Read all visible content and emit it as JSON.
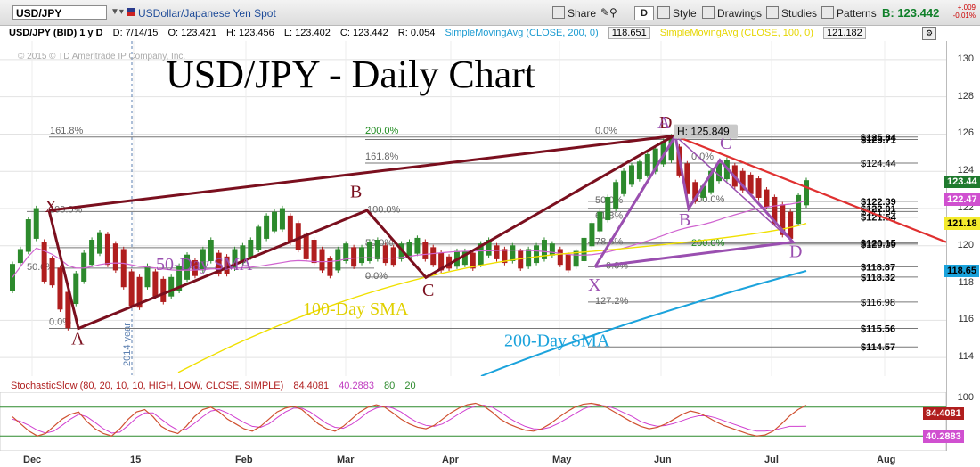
{
  "toolbar": {
    "symbol": "USD/JPY",
    "description": "USDollar/Japanese Yen Spot",
    "share": "Share",
    "style": "Style",
    "drawings": "Drawings",
    "studies": "Studies",
    "patterns": "Patterns",
    "d_button": "D",
    "bid": "B: 123.442",
    "change_abs": "+.009",
    "change_pct": "-0.01%"
  },
  "infobar": {
    "symbol": "USD/JPY (BID) 1 y D",
    "date": "D: 7/14/15",
    "open": "O: 123.421",
    "high": "H: 123.456",
    "low": "L: 123.402",
    "close": "C: 123.442",
    "range": "R: 0.054",
    "sma200_label": "SimpleMovingAvg (CLOSE, 200, 0)",
    "sma200_val": "118.651",
    "sma100_label": "SimpleMovingAvg (CLOSE, 100, 0)",
    "sma100_val": "121.182"
  },
  "copyright": "© 2015 © TD Ameritrade IP Company, Inc.",
  "stoch": {
    "label": "StochasticSlow (80, 20, 10, 10, HIGH, LOW, CLOSE, SIMPLE)",
    "k_val": "84.4081",
    "d_val": "40.2883",
    "ob": "80",
    "os": "20"
  },
  "chart_data": {
    "type": "candlestick",
    "title": "USD/JPY - Daily Chart",
    "ylim": [
      113,
      131
    ],
    "y_ticks": [
      114,
      116,
      118,
      120,
      122,
      124,
      126,
      128,
      130
    ],
    "x_ticks": [
      "Dec",
      "15",
      "Feb",
      "Mar",
      "Apr",
      "May",
      "Jun",
      "Jul",
      "Aug"
    ],
    "year_marker": "2014 year",
    "close_series": [
      [
        119.0,
        117.6
      ],
      [
        119.8,
        119.1
      ],
      [
        121.4,
        119.7
      ],
      [
        122.0,
        120.4
      ],
      [
        120.2,
        118.1
      ],
      [
        119.3,
        117.9
      ],
      [
        118.8,
        116.6
      ],
      [
        117.5,
        115.6
      ],
      [
        118.5,
        116.9
      ],
      [
        119.6,
        118.1
      ],
      [
        120.3,
        119.0
      ],
      [
        120.7,
        119.6
      ],
      [
        120.6,
        119.0
      ],
      [
        120.1,
        118.7
      ],
      [
        119.8,
        117.8
      ],
      [
        118.6,
        116.8
      ],
      [
        118.3,
        116.7
      ],
      [
        118.9,
        117.8
      ],
      [
        118.6,
        117.3
      ],
      [
        118.2,
        117.0
      ],
      [
        118.3,
        117.3
      ],
      [
        118.9,
        117.6
      ],
      [
        119.5,
        118.2
      ],
      [
        119.2,
        118.4
      ],
      [
        119.8,
        118.7
      ],
      [
        120.3,
        119.2
      ],
      [
        119.6,
        118.5
      ],
      [
        119.4,
        118.5
      ],
      [
        119.8,
        118.8
      ],
      [
        120.0,
        119.1
      ],
      [
        120.3,
        119.4
      ],
      [
        121.0,
        119.8
      ],
      [
        121.6,
        120.4
      ],
      [
        121.8,
        120.8
      ],
      [
        122.0,
        120.9
      ],
      [
        121.6,
        120.2
      ],
      [
        121.2,
        119.8
      ],
      [
        120.6,
        119.3
      ],
      [
        120.3,
        119.1
      ],
      [
        119.8,
        118.7
      ],
      [
        119.3,
        118.4
      ],
      [
        119.8,
        118.7
      ],
      [
        120.1,
        119.2
      ],
      [
        119.9,
        118.9
      ],
      [
        119.9,
        119.1
      ],
      [
        120.2,
        119.2
      ],
      [
        120.3,
        119.3
      ],
      [
        120.0,
        119.1
      ],
      [
        119.9,
        119.0
      ],
      [
        120.1,
        119.3
      ],
      [
        120.2,
        119.4
      ],
      [
        120.4,
        119.6
      ],
      [
        120.2,
        119.3
      ],
      [
        119.9,
        119.0
      ],
      [
        119.6,
        118.7
      ],
      [
        119.4,
        118.8
      ],
      [
        119.7,
        118.9
      ],
      [
        119.7,
        119.0
      ],
      [
        119.6,
        118.8
      ],
      [
        120.1,
        119.0
      ],
      [
        120.3,
        119.5
      ],
      [
        120.0,
        119.3
      ],
      [
        119.8,
        119.1
      ],
      [
        120.0,
        119.2
      ],
      [
        119.7,
        118.8
      ],
      [
        119.8,
        118.9
      ],
      [
        120.0,
        119.1
      ],
      [
        120.3,
        119.3
      ],
      [
        120.1,
        119.5
      ],
      [
        119.8,
        119.0
      ],
      [
        119.5,
        118.7
      ],
      [
        119.7,
        118.9
      ],
      [
        120.4,
        119.2
      ],
      [
        121.2,
        120.0
      ],
      [
        121.8,
        120.8
      ],
      [
        122.6,
        121.4
      ],
      [
        123.4,
        122.0
      ],
      [
        124.0,
        122.8
      ],
      [
        124.3,
        123.3
      ],
      [
        124.5,
        123.6
      ],
      [
        124.9,
        123.8
      ],
      [
        125.2,
        124.0
      ],
      [
        125.6,
        124.4
      ],
      [
        125.85,
        124.6
      ],
      [
        125.3,
        123.8
      ],
      [
        124.4,
        122.8
      ],
      [
        123.4,
        122.4
      ],
      [
        123.2,
        122.6
      ],
      [
        124.0,
        122.9
      ],
      [
        124.4,
        123.5
      ],
      [
        124.6,
        123.6
      ],
      [
        124.3,
        123.2
      ],
      [
        124.0,
        123.0
      ],
      [
        123.8,
        122.8
      ],
      [
        123.6,
        122.6
      ],
      [
        123.0,
        122.1
      ],
      [
        122.6,
        121.2
      ],
      [
        122.2,
        120.6
      ],
      [
        121.8,
        120.4
      ],
      [
        122.7,
        121.2
      ],
      [
        123.5,
        122.2
      ]
    ],
    "sma200_value": 118.651,
    "sma100_value": 121.182,
    "price_labels": [
      {
        "value": 125.84,
        "text": "$125.84"
      },
      {
        "value": 125.71,
        "text": "$125.71"
      },
      {
        "value": 124.44,
        "text": "$124.44"
      },
      {
        "value": 122.39,
        "text": "$122.39"
      },
      {
        "value": 122.01,
        "text": "$122.01"
      },
      {
        "value": 121.84,
        "text": "$121.84"
      },
      {
        "value": 121.54,
        "text": "$121.54"
      },
      {
        "value": 120.15,
        "text": "$120.15"
      },
      {
        "value": 120.09,
        "text": "$120.09"
      },
      {
        "value": 118.87,
        "text": "$118.87"
      },
      {
        "value": 118.32,
        "text": "$118.32"
      },
      {
        "value": 116.98,
        "text": "$116.98"
      },
      {
        "value": 115.56,
        "text": "$115.56"
      },
      {
        "value": 114.57,
        "text": "$114.57"
      }
    ],
    "current_price": {
      "value": 123.44,
      "text": "123.44"
    },
    "sma100_box": {
      "value": 121.18,
      "text": "121.18"
    },
    "sma200_box": {
      "value": 118.65,
      "text": "118.65"
    },
    "magenta_box": {
      "value": 122.47,
      "text": "122.47"
    },
    "high_label": "H: 125.849",
    "fib_labels": [
      "161.8%",
      "200.0%",
      "161.8%",
      "0.0%",
      "100.0%",
      "50.0%",
      "0.0%",
      "100.0%",
      "50.0%",
      "61.8%",
      "78.6%",
      "0.0%",
      "200.0%",
      "0.0%",
      "127.2%",
      "100.0%",
      "50.0%",
      "0.0%"
    ],
    "pattern_points": {
      "first": [
        {
          "label": "X",
          "value": 121.9
        },
        {
          "label": "A",
          "value": 115.56
        },
        {
          "label": "B",
          "value": 121.9
        },
        {
          "label": "C",
          "value": 118.32
        },
        {
          "label": "D",
          "value": 125.84
        }
      ],
      "second": [
        {
          "label": "X",
          "value": 118.87
        },
        {
          "label": "A",
          "value": 125.84
        },
        {
          "label": "B",
          "value": 122.0
        },
        {
          "label": "C",
          "value": 124.5
        },
        {
          "label": "D",
          "value": 120.2
        }
      ]
    },
    "annotations": [
      "50-Day SMA",
      "100-Day SMA",
      "200-Day SMA"
    ],
    "colors": {
      "up": "#2d8a2d",
      "down": "#b01e1e",
      "sma50": "#d064d0",
      "sma100": "#f0e000",
      "sma200": "#1ba3dc",
      "pattern1": "#7a0f1e",
      "pattern2": "#9a4fb0",
      "trendline": "#e03030",
      "stoch_k": "#d05030",
      "stoch_d": "#d040d0"
    }
  },
  "stoch_data": {
    "ylim": [
      0,
      100
    ],
    "k": [
      60,
      45,
      30,
      20,
      25,
      40,
      55,
      65,
      70,
      50,
      35,
      25,
      20,
      35,
      55,
      70,
      75,
      60,
      40,
      30,
      25,
      40,
      60,
      75,
      80,
      70,
      55,
      45,
      35,
      30,
      40,
      55,
      70,
      78,
      82,
      75,
      60,
      45,
      35,
      30,
      40,
      55,
      70,
      80,
      85,
      80,
      68,
      55,
      45,
      38,
      35,
      42,
      55,
      68,
      78,
      85,
      88,
      82,
      70,
      55,
      45,
      38,
      32,
      30,
      35,
      45,
      58,
      70,
      80,
      86,
      88,
      85,
      78,
      68,
      58,
      48,
      40,
      35,
      38,
      45,
      55,
      65,
      72,
      68,
      60,
      50,
      42,
      36,
      30,
      24,
      20,
      22,
      30,
      45,
      62,
      75,
      84
    ],
    "d": [
      55,
      50,
      42,
      32,
      26,
      30,
      42,
      55,
      65,
      60,
      48,
      35,
      26,
      28,
      42,
      58,
      68,
      68,
      55,
      42,
      32,
      34,
      46,
      60,
      72,
      75,
      68,
      58,
      48,
      40,
      38,
      45,
      58,
      70,
      78,
      78,
      70,
      58,
      46,
      38,
      36,
      44,
      56,
      70,
      78,
      82,
      78,
      70,
      58,
      48,
      42,
      40,
      45,
      55,
      66,
      76,
      82,
      84,
      80,
      70,
      58,
      48,
      40,
      35,
      34,
      38,
      46,
      56,
      66,
      76,
      82,
      84,
      82,
      76,
      68,
      60,
      50,
      44,
      40,
      42,
      46,
      52,
      58,
      62,
      62,
      58,
      52,
      46,
      40,
      34,
      30,
      30,
      32,
      36,
      40,
      40,
      40.3
    ]
  }
}
